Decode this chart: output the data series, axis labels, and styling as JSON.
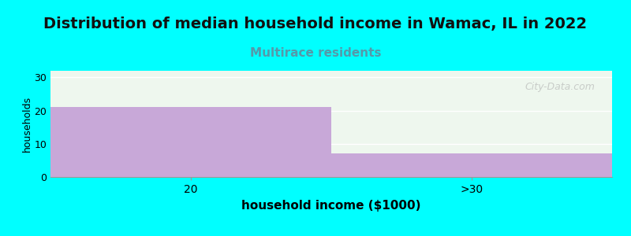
{
  "title": "Distribution of median household income in Wamac, IL in 2022",
  "subtitle": "Multirace residents",
  "xlabel": "household income ($1000)",
  "ylabel": "households",
  "categories": [
    "20",
    ">30"
  ],
  "values": [
    21,
    7
  ],
  "bar_color": "#C8A8D8",
  "plot_bg_color": "#EEF7EE",
  "fig_bg_color": "#00FFFF",
  "ylim": [
    0,
    32
  ],
  "yticks": [
    0,
    10,
    20,
    30
  ],
  "title_fontsize": 14,
  "subtitle_fontsize": 11,
  "subtitle_color": "#5599AA",
  "xlabel_fontsize": 11,
  "ylabel_fontsize": 9,
  "watermark": "City-Data.com",
  "watermark_color": "#AAAAAA",
  "bar_edges": [
    0.0,
    0.5,
    1.0
  ],
  "xlim": [
    0.0,
    1.0
  ]
}
